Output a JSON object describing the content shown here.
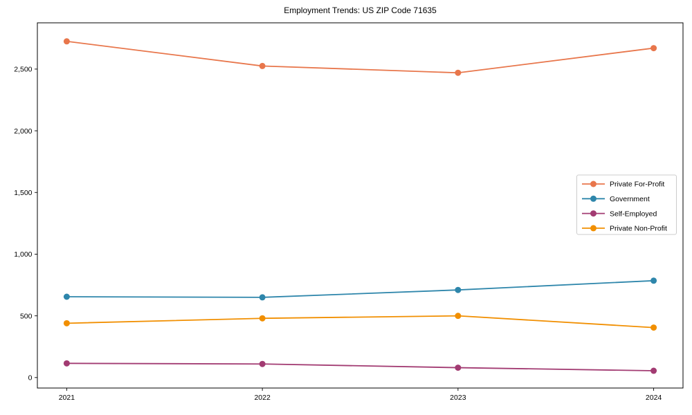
{
  "chart_data": {
    "type": "line",
    "title": "Employment Trends: US ZIP Code 71635",
    "xlabel": "",
    "ylabel": "",
    "x": [
      2021,
      2022,
      2023,
      2024
    ],
    "xtick_labels": [
      "2021",
      "2022",
      "2023",
      "2024"
    ],
    "yticks": [
      0,
      500,
      1000,
      1500,
      2000,
      2500
    ],
    "ytick_labels": [
      "0",
      "500",
      "1,000",
      "1,500",
      "2,000",
      "2,500"
    ],
    "xlim": [
      2020.85,
      2024.15
    ],
    "ylim": [
      -85,
      2875
    ],
    "grid": false,
    "marker": "circle",
    "legend_position": "center right",
    "axis_color": "#000000",
    "background_color": "#ffffff",
    "legend_border_color": "#cccccc",
    "series": [
      {
        "name": "Private For-Profit",
        "color": "#E8764B",
        "values": [
          2725,
          2525,
          2470,
          2670
        ]
      },
      {
        "name": "Government",
        "color": "#2E86AB",
        "values": [
          655,
          650,
          710,
          785
        ]
      },
      {
        "name": "Self-Employed",
        "color": "#A23B72",
        "values": [
          115,
          110,
          80,
          55
        ]
      },
      {
        "name": "Private Non-Profit",
        "color": "#F18F01",
        "values": [
          440,
          480,
          500,
          405
        ]
      }
    ]
  }
}
